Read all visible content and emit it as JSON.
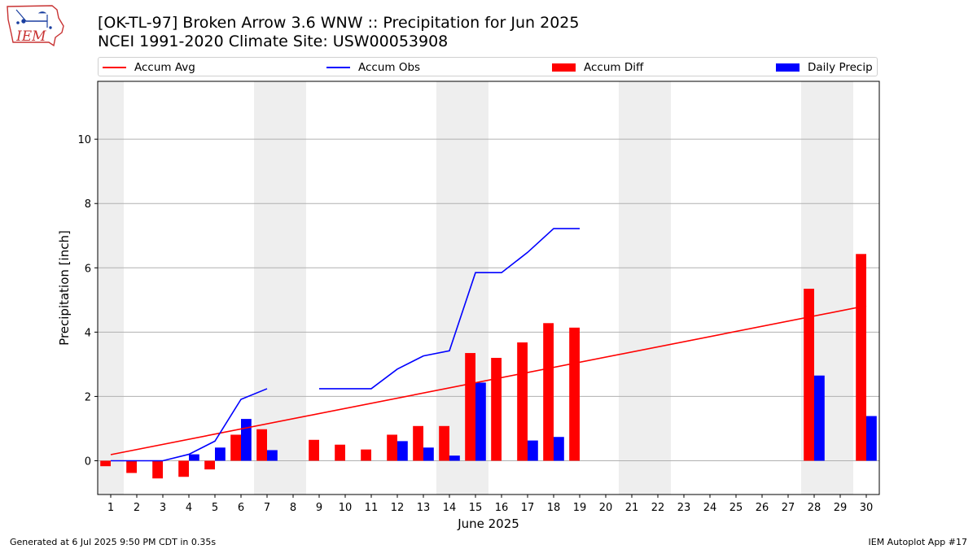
{
  "logo": {
    "text": "IEM"
  },
  "title": {
    "line1": "[OK-TL-97] Broken Arrow 3.6 WNW :: Precipitation for Jun 2025",
    "line2": "NCEI 1991-2020 Climate Site: USW00053908"
  },
  "legend": {
    "accum_avg": "Accum Avg",
    "accum_obs": "Accum Obs",
    "accum_diff": "Accum Diff",
    "daily_precip": "Daily Precip"
  },
  "footer": {
    "left": "Generated at 6 Jul 2025 9:50 PM CDT in 0.35s",
    "right": "IEM Autoplot App #17"
  },
  "colors": {
    "avg": "#ff0000",
    "obs": "#0000ff",
    "diff": "#ff0000",
    "daily": "#0000ff",
    "weekend": "#eeeeee"
  },
  "chart_data": {
    "type": "bar",
    "xlabel": "June 2025",
    "ylabel": "Precipitation [inch]",
    "xlim": [
      0.5,
      30.5
    ],
    "ylim": [
      -1.05,
      11.8
    ],
    "yticks": [
      0,
      2,
      4,
      6,
      8,
      10
    ],
    "grid": "horizontal",
    "legend_position": "top",
    "days": [
      1,
      2,
      3,
      4,
      5,
      6,
      7,
      8,
      9,
      10,
      11,
      12,
      13,
      14,
      15,
      16,
      17,
      18,
      19,
      20,
      21,
      22,
      23,
      24,
      25,
      26,
      27,
      28,
      29,
      30
    ],
    "weekend_days": [
      1,
      7,
      8,
      14,
      15,
      21,
      22,
      28,
      29
    ],
    "series": [
      {
        "name": "Accum Avg",
        "kind": "line",
        "x": [
          1,
          30
        ],
        "values": [
          0.19,
          4.82
        ]
      },
      {
        "name": "Accum Obs",
        "kind": "line",
        "values": [
          0.0,
          0.0,
          0.0,
          0.2,
          0.61,
          1.91,
          2.24,
          null,
          2.24,
          2.24,
          2.24,
          2.85,
          3.26,
          3.42,
          5.85,
          5.85,
          6.48,
          7.22,
          7.22,
          null,
          null,
          null,
          null,
          null,
          null,
          null,
          null,
          null,
          null,
          null
        ]
      },
      {
        "name": "Accum Diff",
        "kind": "bar",
        "values": [
          -0.17,
          -0.38,
          -0.55,
          -0.5,
          -0.27,
          0.81,
          0.98,
          null,
          0.65,
          0.5,
          0.35,
          0.81,
          1.08,
          1.08,
          3.35,
          3.2,
          3.68,
          4.28,
          4.14,
          null,
          null,
          null,
          null,
          null,
          null,
          null,
          null,
          5.35,
          null,
          6.43
        ]
      },
      {
        "name": "Daily Precip",
        "kind": "bar",
        "values": [
          0,
          0,
          0,
          0.2,
          0.41,
          1.3,
          0.33,
          null,
          null,
          null,
          null,
          0.61,
          0.41,
          0.16,
          2.43,
          null,
          0.63,
          0.74,
          null,
          null,
          null,
          null,
          null,
          null,
          null,
          null,
          null,
          2.65,
          null,
          1.39
        ]
      }
    ]
  }
}
